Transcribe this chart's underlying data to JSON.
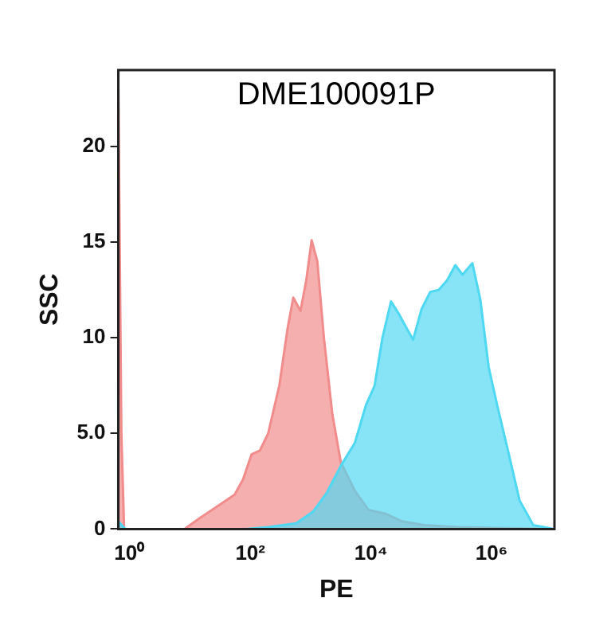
{
  "chart_data": {
    "type": "area",
    "title": "DME100091P",
    "xlabel": "PE",
    "ylabel": "SSC",
    "log": "x",
    "xlim": [
      0.65,
      11000000
    ],
    "ylim": [
      0,
      24
    ],
    "xticks": [
      {
        "value": 1,
        "label": "10⁰"
      },
      {
        "value": 100,
        "label": "10²"
      },
      {
        "value": 10000,
        "label": "10⁴"
      },
      {
        "value": 1000000,
        "label": "10⁶"
      }
    ],
    "yticks": [
      0,
      {
        "value": 5,
        "label": "5.0"
      },
      10,
      15,
      20
    ],
    "grid": false,
    "legend": false,
    "marker": "none",
    "series": [
      {
        "color": "#f28b8b",
        "x": [
          0.65,
          0.73,
          0.81,
          8.1,
          15,
          29,
          55,
          76,
          105,
          144,
          198,
          303,
          416,
          516,
          680,
          846,
          1040,
          1290,
          1660,
          2290,
          3160,
          5400,
          9100,
          17400,
          33000,
          77000,
          280000,
          11000000
        ],
        "values": [
          23,
          5,
          0,
          0,
          0.6,
          1.2,
          1.8,
          2.6,
          3.9,
          4.1,
          5,
          7.5,
          10.5,
          12.1,
          11.4,
          13,
          15.1,
          14,
          10,
          6,
          3.5,
          2,
          1,
          0.8,
          0.4,
          0.2,
          0.1,
          0
        ]
      },
      {
        "color": "#4fd8f2",
        "x": [
          0.65,
          0.85,
          85,
          198,
          575,
          1090,
          1860,
          3160,
          5400,
          8300,
          11500,
          15500,
          21500,
          29600,
          39000,
          50000,
          69000,
          96000,
          132000,
          182000,
          250000,
          330000,
          480000,
          650000,
          890000,
          1230000,
          1900000,
          2900000,
          4900000,
          11000000
        ],
        "values": [
          0.4,
          0,
          0,
          0.1,
          0.3,
          0.9,
          1.9,
          3.3,
          4.5,
          6.5,
          7.5,
          10,
          11.9,
          11.2,
          10.5,
          9.9,
          11.5,
          12.4,
          12.5,
          13,
          13.8,
          13.3,
          13.9,
          12,
          8.5,
          6.5,
          4,
          1.5,
          0.2,
          0
        ]
      }
    ]
  }
}
